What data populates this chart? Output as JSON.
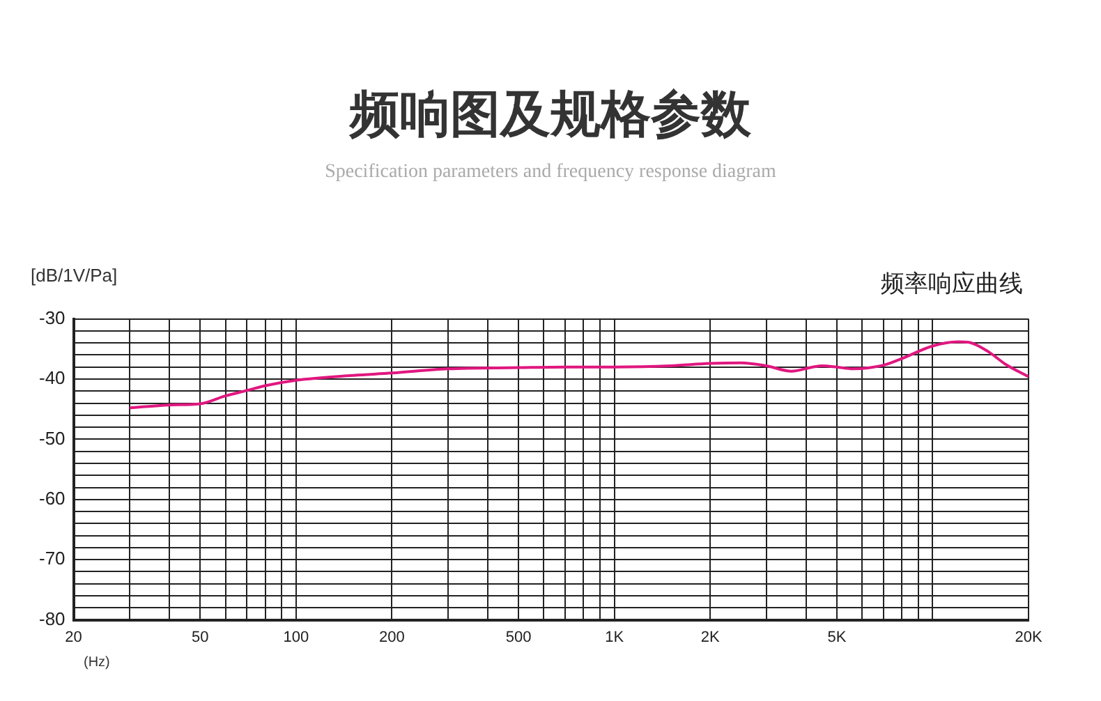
{
  "chart_data": {
    "type": "line",
    "title": "频响图及规格参数",
    "subtitle": "Specification parameters and frequency response diagram",
    "xlabel": "(Hz)",
    "ylabel": "[dB/1V/Pa]",
    "annotations": [
      "频率响应曲线"
    ],
    "x": [
      30,
      40,
      50,
      60,
      70,
      80,
      100,
      150,
      200,
      300,
      500,
      700,
      1000,
      1500,
      2000,
      2500,
      3000,
      3600,
      4200,
      4500,
      5000,
      5600,
      7000,
      8000,
      10000,
      12000,
      13000,
      15000,
      17000,
      20000
    ],
    "series": [
      {
        "color": "#e0177f",
        "values": [
          -44.8,
          -44.3,
          -44.1,
          -42.8,
          -41.9,
          -41.1,
          -40.2,
          -39.4,
          -39.0,
          -38.3,
          -38.1,
          -38.0,
          -38.0,
          -37.8,
          -37.4,
          -37.3,
          -37.8,
          -38.7,
          -38.0,
          -37.8,
          -38.0,
          -38.3,
          -37.7,
          -36.6,
          -34.5,
          -33.8,
          -33.9,
          -35.5,
          -37.6,
          -39.6
        ]
      }
    ],
    "xlim": [
      20,
      20000
    ],
    "ylim": [
      -80,
      -30
    ],
    "log": "x",
    "grid": true,
    "xticks": [
      20,
      {
        "value": 30,
        "label": null
      },
      {
        "value": 40,
        "label": null
      },
      50,
      {
        "value": 60,
        "label": null
      },
      {
        "value": 70,
        "label": null
      },
      {
        "value": 80,
        "label": null
      },
      {
        "value": 90,
        "label": null
      },
      100,
      200,
      {
        "value": 300,
        "label": null
      },
      {
        "value": 400,
        "label": null
      },
      500,
      {
        "value": 600,
        "label": null
      },
      {
        "value": 700,
        "label": null
      },
      {
        "value": 800,
        "label": null
      },
      {
        "value": 900,
        "label": null
      },
      {
        "value": 1000,
        "label": "1K"
      },
      {
        "value": 2000,
        "label": "2K"
      },
      {
        "value": 3000,
        "label": null
      },
      {
        "value": 4000,
        "label": null
      },
      {
        "value": 5000,
        "label": "5K"
      },
      {
        "value": 6000,
        "label": null
      },
      {
        "value": 7000,
        "label": null
      },
      {
        "value": 8000,
        "label": null
      },
      {
        "value": 9000,
        "label": null
      },
      {
        "value": 10000,
        "label": null
      },
      {
        "value": 20000,
        "label": "20K"
      }
    ],
    "yticks": [
      -80,
      {
        "value": -78,
        "label": null
      },
      {
        "value": -76,
        "label": null
      },
      {
        "value": -74,
        "label": null
      },
      {
        "value": -72,
        "label": null
      },
      -70,
      {
        "value": -68,
        "label": null
      },
      {
        "value": -66,
        "label": null
      },
      {
        "value": -64,
        "label": null
      },
      {
        "value": -62,
        "label": null
      },
      -60,
      {
        "value": -58,
        "label": null
      },
      {
        "value": -56,
        "label": null
      },
      {
        "value": -54,
        "label": null
      },
      {
        "value": -52,
        "label": null
      },
      -50,
      {
        "value": -48,
        "label": null
      },
      {
        "value": -46,
        "label": null
      },
      {
        "value": -44,
        "label": null
      },
      {
        "value": -42,
        "label": null
      },
      -40,
      {
        "value": -38,
        "label": null
      },
      {
        "value": -36,
        "label": null
      },
      {
        "value": -34,
        "label": null
      },
      {
        "value": -32,
        "label": null
      },
      -30
    ]
  }
}
